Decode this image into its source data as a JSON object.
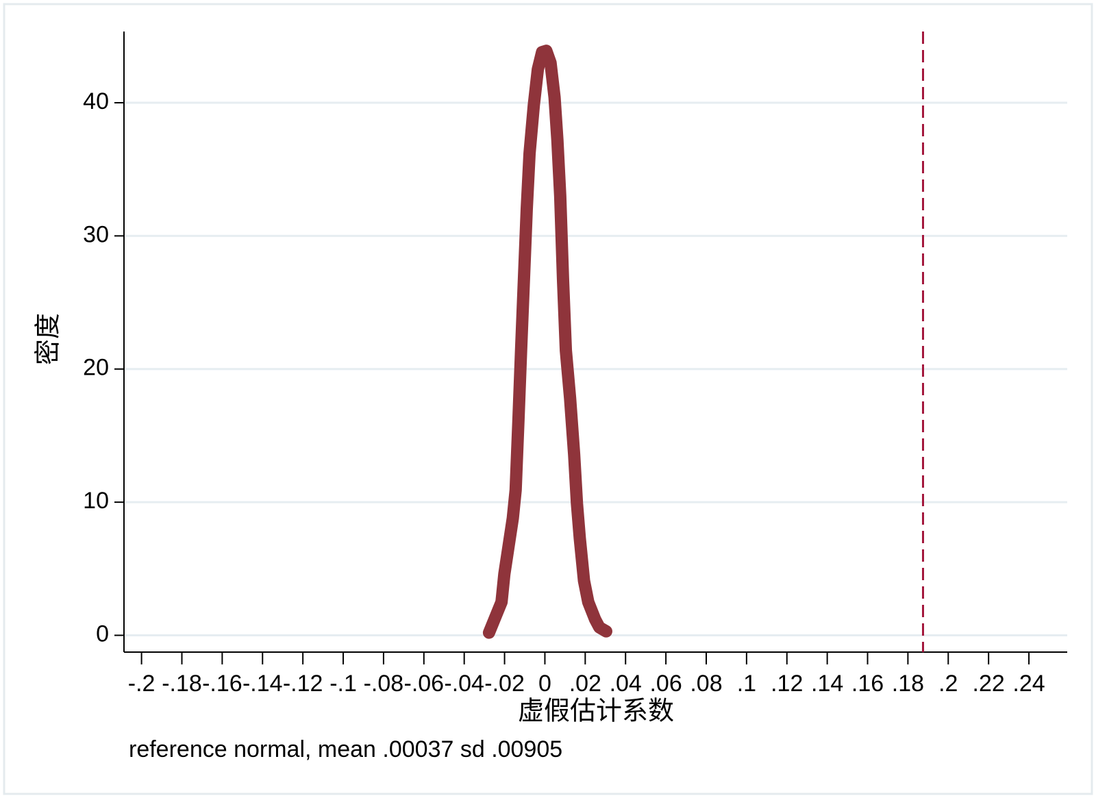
{
  "chart_data": {
    "type": "line",
    "x_label": "虚假估计系数",
    "y_label": "密度",
    "note": "reference normal, mean .00037 sd .00905",
    "x": [
      -0.0277,
      -0.0242,
      -0.0215,
      -0.0201,
      -0.018,
      -0.0159,
      -0.0145,
      -0.0131,
      -0.0118,
      -0.0104,
      -0.009,
      -0.0076,
      -0.0055,
      -0.0035,
      -0.0014,
      0.0007,
      0.0028,
      0.0048,
      0.0062,
      0.0076,
      0.009,
      0.0104,
      0.0125,
      0.0145,
      0.0159,
      0.0173,
      0.0194,
      0.0215,
      0.0249,
      0.027,
      0.0304
    ],
    "values": [
      0.2,
      1.5,
      2.5,
      4.6,
      6.7,
      8.8,
      10.9,
      16.2,
      21.4,
      26.7,
      32,
      36.2,
      39.8,
      42.5,
      43.8,
      43.9,
      43,
      40.4,
      37.2,
      33,
      26.7,
      21.4,
      17.8,
      13.6,
      9.9,
      7.3,
      4.1,
      2.5,
      1.2,
      0.6,
      0.3
    ],
    "color": "#8f343b",
    "xline": 0.1875,
    "xline_color": "#a3173c",
    "xlim": [
      -0.2087,
      0.259
    ],
    "ylim": [
      -1.26,
      45.35
    ],
    "xticks": [
      {
        "value": -0.2,
        "label": "-.2"
      },
      {
        "value": -0.18,
        "label": "-.18"
      },
      {
        "value": -0.16,
        "label": "-.16"
      },
      {
        "value": -0.14,
        "label": "-.14"
      },
      {
        "value": -0.12,
        "label": "-.12"
      },
      {
        "value": -0.1,
        "label": "-.1"
      },
      {
        "value": -0.08,
        "label": "-.08"
      },
      {
        "value": -0.06,
        "label": "-.06"
      },
      {
        "value": -0.04,
        "label": "-.04"
      },
      {
        "value": -0.02,
        "label": "-.02"
      },
      0,
      {
        "value": 0.02,
        "label": ".02"
      },
      {
        "value": 0.04,
        "label": ".04"
      },
      {
        "value": 0.06,
        "label": ".06"
      },
      {
        "value": 0.08,
        "label": ".08"
      },
      {
        "value": 0.1,
        "label": ".1"
      },
      {
        "value": 0.12,
        "label": ".12"
      },
      {
        "value": 0.14,
        "label": ".14"
      },
      {
        "value": 0.16,
        "label": ".16"
      },
      {
        "value": 0.18,
        "label": ".18"
      },
      {
        "value": 0.2,
        "label": ".2"
      },
      {
        "value": 0.22,
        "label": ".22"
      },
      {
        "value": 0.24,
        "label": ".24"
      }
    ],
    "yticks": [
      0,
      10,
      20,
      30,
      40
    ],
    "grid": true
  }
}
